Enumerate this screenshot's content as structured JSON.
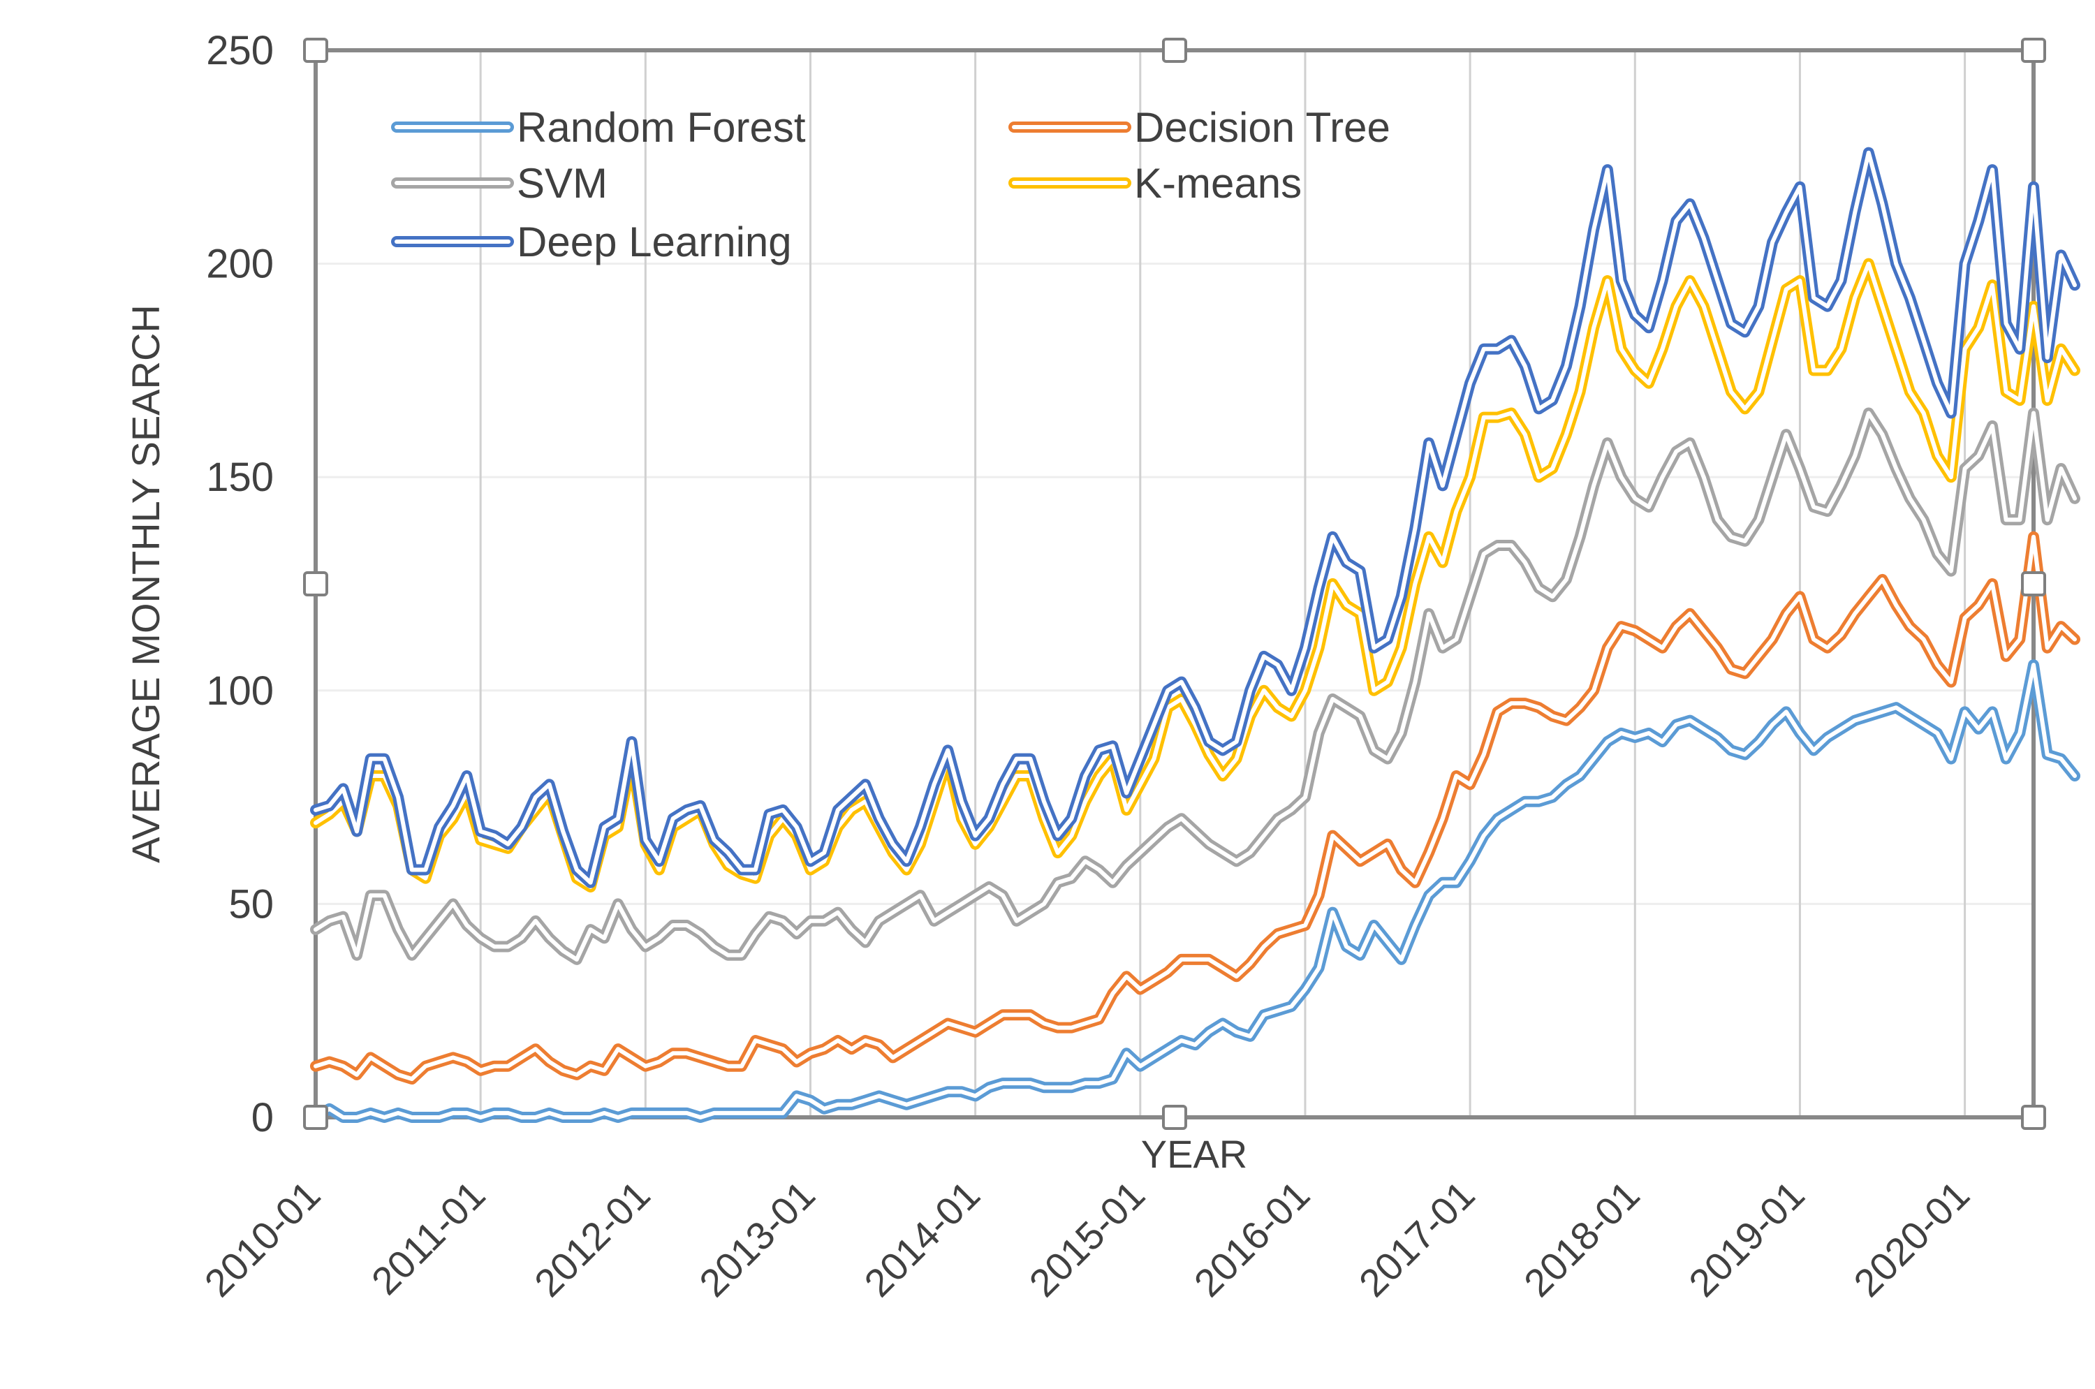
{
  "chart_data": {
    "type": "line",
    "title": "",
    "xlabel": "YEAR",
    "ylabel": "AVERAGE MONTHLY SEARCH",
    "ylim": [
      0,
      250
    ],
    "yticks": [
      "0",
      "50",
      "100",
      "150",
      "200",
      "250"
    ],
    "xtick_labels": [
      "2010-01",
      "2011-01",
      "2012-01",
      "2013-01",
      "2014-01",
      "2015-01",
      "2016-01",
      "2017-01",
      "2018-01",
      "2019-01",
      "2020-01"
    ],
    "x_range_months": [
      0,
      125
    ],
    "grid": "vertical",
    "legend_position": "top-left",
    "series": [
      {
        "name": "Random Forest",
        "color": "#5b9bd5",
        "values": [
          0,
          2,
          0,
          0,
          1,
          0,
          1,
          0,
          0,
          0,
          1,
          1,
          0,
          1,
          1,
          0,
          0,
          1,
          0,
          0,
          0,
          1,
          0,
          1,
          1,
          1,
          1,
          1,
          0,
          1,
          1,
          1,
          1,
          1,
          1,
          5,
          4,
          2,
          3,
          3,
          4,
          5,
          4,
          3,
          4,
          5,
          6,
          6,
          5,
          7,
          8,
          8,
          8,
          7,
          7,
          7,
          8,
          8,
          9,
          15,
          12,
          14,
          16,
          18,
          17,
          20,
          22,
          20,
          19,
          24,
          25,
          26,
          30,
          35,
          48,
          40,
          38,
          45,
          41,
          37,
          45,
          52,
          55,
          55,
          60,
          66,
          70,
          72,
          74,
          74,
          75,
          78,
          80,
          84,
          88,
          90,
          89,
          90,
          88,
          92,
          93,
          91,
          89,
          86,
          85,
          88,
          92,
          95,
          90,
          86,
          89,
          91,
          93,
          94,
          95,
          96,
          94,
          92,
          90,
          84,
          95,
          91,
          95,
          84,
          90,
          106,
          85,
          84,
          80
        ]
      },
      {
        "name": "Decision Tree",
        "color": "#ed7d31",
        "values": [
          12,
          13,
          12,
          10,
          14,
          12,
          10,
          9,
          12,
          13,
          14,
          13,
          11,
          12,
          12,
          14,
          16,
          13,
          11,
          10,
          12,
          11,
          16,
          14,
          12,
          13,
          15,
          15,
          14,
          13,
          12,
          12,
          18,
          17,
          16,
          13,
          15,
          16,
          18,
          16,
          18,
          17,
          14,
          16,
          18,
          20,
          22,
          21,
          20,
          22,
          24,
          24,
          24,
          22,
          21,
          21,
          22,
          23,
          29,
          33,
          30,
          32,
          34,
          37,
          37,
          37,
          35,
          33,
          36,
          40,
          43,
          44,
          45,
          52,
          66,
          63,
          60,
          62,
          64,
          58,
          55,
          62,
          70,
          80,
          78,
          85,
          95,
          97,
          97,
          96,
          94,
          93,
          96,
          100,
          110,
          115,
          114,
          112,
          110,
          115,
          118,
          114,
          110,
          105,
          104,
          108,
          112,
          118,
          122,
          112,
          110,
          113,
          118,
          122,
          126,
          120,
          115,
          112,
          106,
          102,
          117,
          120,
          125,
          108,
          112,
          136,
          110,
          115,
          112
        ]
      },
      {
        "name": "SVM",
        "color": "#a5a5a5",
        "values": [
          44,
          46,
          47,
          38,
          52,
          52,
          44,
          38,
          42,
          46,
          50,
          45,
          42,
          40,
          40,
          42,
          46,
          42,
          39,
          37,
          44,
          42,
          50,
          44,
          40,
          42,
          45,
          45,
          43,
          40,
          38,
          38,
          43,
          47,
          46,
          43,
          46,
          46,
          48,
          44,
          41,
          46,
          48,
          50,
          52,
          46,
          48,
          50,
          52,
          54,
          52,
          46,
          48,
          50,
          55,
          56,
          60,
          58,
          55,
          59,
          62,
          65,
          68,
          70,
          67,
          64,
          62,
          60,
          62,
          66,
          70,
          72,
          75,
          90,
          98,
          96,
          94,
          86,
          84,
          90,
          102,
          118,
          110,
          112,
          122,
          132,
          134,
          134,
          130,
          124,
          122,
          126,
          136,
          148,
          158,
          150,
          145,
          143,
          150,
          156,
          158,
          150,
          140,
          136,
          135,
          140,
          150,
          160,
          152,
          143,
          142,
          148,
          155,
          165,
          160,
          152,
          145,
          140,
          132,
          128,
          152,
          155,
          162,
          140,
          140,
          165,
          140,
          152,
          145
        ]
      },
      {
        "name": "K-means",
        "color": "#ffc000",
        "values": [
          69,
          71,
          74,
          67,
          80,
          80,
          73,
          58,
          56,
          66,
          70,
          76,
          65,
          64,
          63,
          68,
          72,
          76,
          66,
          56,
          54,
          66,
          68,
          84,
          64,
          58,
          68,
          70,
          72,
          64,
          59,
          57,
          56,
          66,
          70,
          66,
          58,
          60,
          68,
          72,
          74,
          68,
          62,
          58,
          64,
          74,
          84,
          70,
          64,
          68,
          74,
          80,
          80,
          70,
          62,
          66,
          74,
          80,
          84,
          72,
          78,
          84,
          96,
          98,
          92,
          85,
          80,
          84,
          94,
          100,
          96,
          94,
          100,
          110,
          125,
          120,
          118,
          100,
          102,
          110,
          125,
          136,
          130,
          142,
          150,
          164,
          164,
          165,
          160,
          150,
          152,
          160,
          170,
          185,
          196,
          180,
          175,
          172,
          180,
          190,
          196,
          190,
          180,
          170,
          166,
          170,
          182,
          194,
          196,
          175,
          175,
          180,
          192,
          200,
          190,
          180,
          170,
          165,
          155,
          150,
          180,
          185,
          195,
          170,
          168,
          190,
          168,
          180,
          175
        ]
      },
      {
        "name": "Deep Learning",
        "color": "#4472c4",
        "values": [
          72,
          73,
          77,
          67,
          84,
          84,
          75,
          58,
          58,
          68,
          73,
          80,
          67,
          66,
          64,
          68,
          75,
          78,
          67,
          58,
          55,
          68,
          70,
          88,
          65,
          60,
          70,
          72,
          73,
          65,
          62,
          58,
          58,
          71,
          72,
          68,
          60,
          62,
          72,
          75,
          78,
          70,
          64,
          60,
          68,
          78,
          86,
          74,
          66,
          70,
          78,
          84,
          84,
          74,
          66,
          70,
          80,
          86,
          87,
          76,
          84,
          92,
          100,
          102,
          96,
          88,
          86,
          88,
          100,
          108,
          106,
          100,
          110,
          124,
          136,
          130,
          128,
          110,
          112,
          122,
          138,
          158,
          148,
          160,
          172,
          180,
          180,
          182,
          176,
          166,
          168,
          176,
          190,
          208,
          222,
          196,
          188,
          185,
          196,
          210,
          214,
          206,
          196,
          186,
          184,
          190,
          205,
          212,
          218,
          192,
          190,
          196,
          212,
          226,
          214,
          200,
          192,
          182,
          172,
          165,
          200,
          210,
          222,
          186,
          180,
          218,
          178,
          202,
          195
        ]
      }
    ]
  }
}
